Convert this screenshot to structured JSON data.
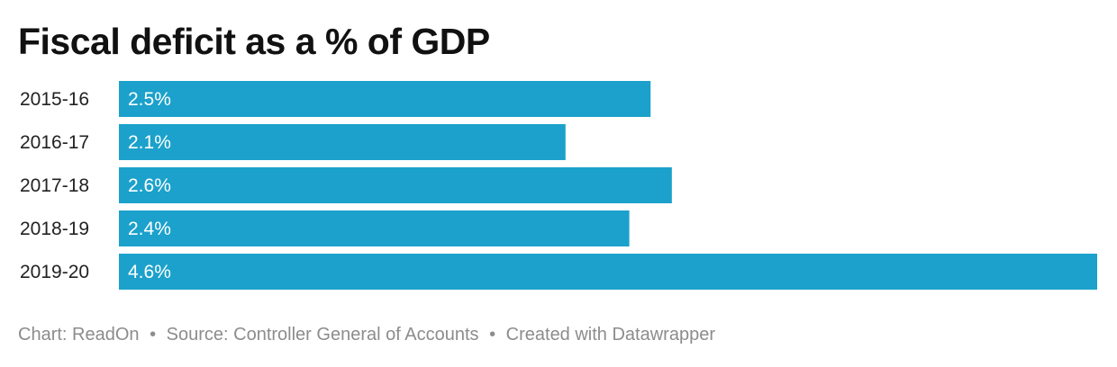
{
  "chart_data": {
    "type": "bar",
    "orientation": "horizontal",
    "title": "Fiscal deficit as a % of GDP",
    "categories": [
      "2015-16",
      "2016-17",
      "2017-18",
      "2018-19",
      "2019-20"
    ],
    "values": [
      2.5,
      2.1,
      2.6,
      2.4,
      4.6
    ],
    "value_labels": [
      "2.5%",
      "2.1%",
      "2.6%",
      "2.4%",
      "4.6%"
    ],
    "xlim": [
      0,
      4.6
    ],
    "grid": false,
    "bar_color": "#1ba1cb",
    "label_color": "#ffffff"
  },
  "footer": {
    "chart_credit": "Chart: ReadOn",
    "source": "Source: Controller General of Accounts",
    "created_with": "Created with Datawrapper",
    "separator": "•"
  },
  "colors": {
    "title": "#111111",
    "category_label": "#222222",
    "footer": "#8c8c8c"
  }
}
